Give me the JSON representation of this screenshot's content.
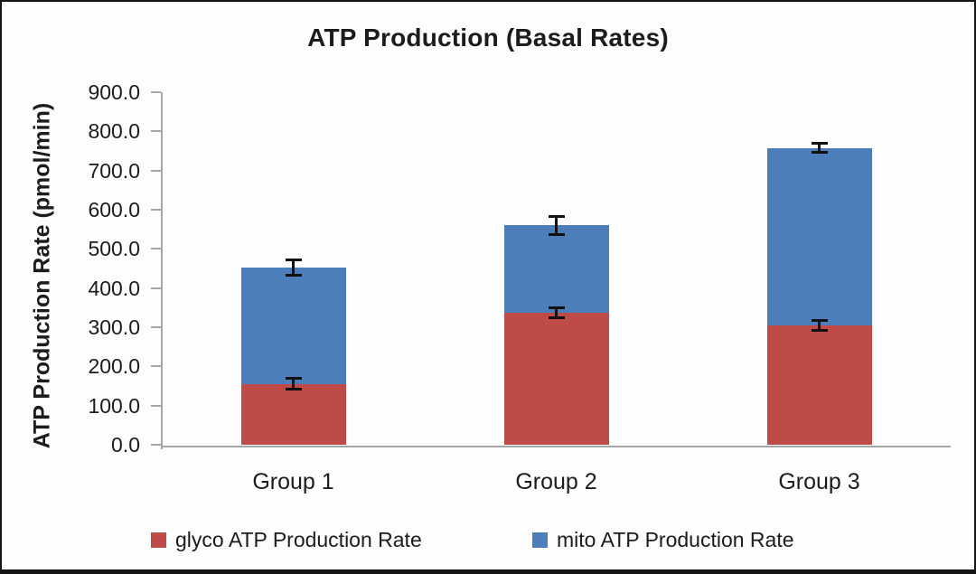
{
  "chart_data": {
    "type": "bar",
    "stacked": true,
    "title": "ATP Production (Basal Rates)",
    "xlabel": "",
    "ylabel": "ATP Production Rate (pmol/min)",
    "categories": [
      "Group 1",
      "Group 2",
      "Group 3"
    ],
    "series": [
      {
        "name": "glyco ATP Production Rate",
        "color": "#BE4B48",
        "values": [
          155,
          336,
          305
        ],
        "error_bars": [
          15,
          14,
          14
        ]
      },
      {
        "name": "mito ATP Production Rate",
        "color": "#4C7EBB",
        "values": [
          297,
          224,
          453
        ],
        "error_bars": [
          20,
          25,
          12
        ]
      }
    ],
    "stack_totals": [
      452,
      560,
      758
    ],
    "ylim": [
      0,
      900
    ],
    "ytick_step": 100,
    "ytick_labels": [
      "0.0",
      "100.0",
      "200.0",
      "300.0",
      "400.0",
      "500.0",
      "600.0",
      "700.0",
      "800.0",
      "900.0"
    ],
    "grid": false,
    "legend_position": "bottom",
    "axis_color": "#A6A6A6",
    "error_bar_color": "#111111",
    "text_color": "#1C1C1C"
  }
}
